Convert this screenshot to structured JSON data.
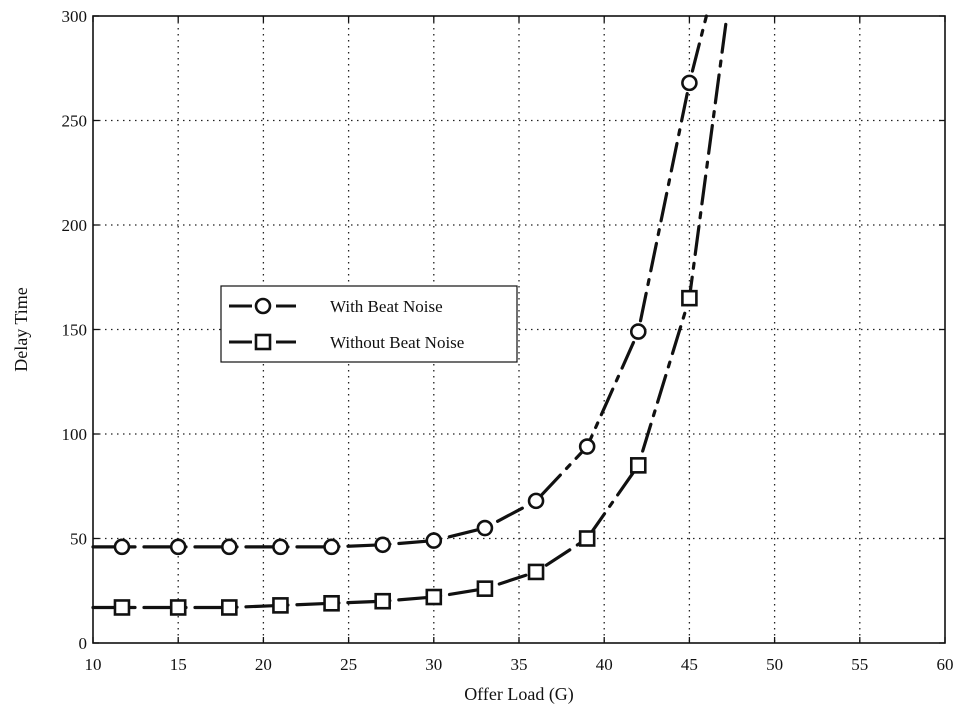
{
  "chart_data": {
    "type": "line",
    "xlabel": "Offer Load (G)",
    "ylabel": "Delay Time",
    "xlim": [
      10,
      60
    ],
    "ylim": [
      0,
      300
    ],
    "xticks": [
      "10",
      "15",
      "20",
      "25",
      "30",
      "35",
      "40",
      "45",
      "50",
      "55",
      "60"
    ],
    "yticks": [
      "0",
      "50",
      "100",
      "150",
      "200",
      "250",
      "300"
    ],
    "grid": true,
    "legend_position": "center-left",
    "series": [
      {
        "name": "With Beat Noise",
        "marker": "circle",
        "color": "#111111",
        "x": [
          11.7,
          15,
          18,
          21,
          24,
          27,
          30,
          33,
          36,
          39,
          42,
          45
        ],
        "y": [
          46,
          46,
          46,
          46,
          46,
          47,
          49,
          55,
          68,
          94,
          149,
          268
        ],
        "continues_beyond": [
          [
            46,
            300
          ]
        ]
      },
      {
        "name": "Without Beat Noise",
        "marker": "square",
        "color": "#111111",
        "x": [
          11.7,
          15,
          18,
          21,
          24,
          27,
          30,
          33,
          36,
          39,
          42,
          45
        ],
        "y": [
          17,
          17,
          17,
          18,
          19,
          20,
          22,
          26,
          34,
          50,
          85,
          165
        ],
        "continues_beyond": [
          [
            47.2,
            300
          ]
        ]
      }
    ]
  }
}
